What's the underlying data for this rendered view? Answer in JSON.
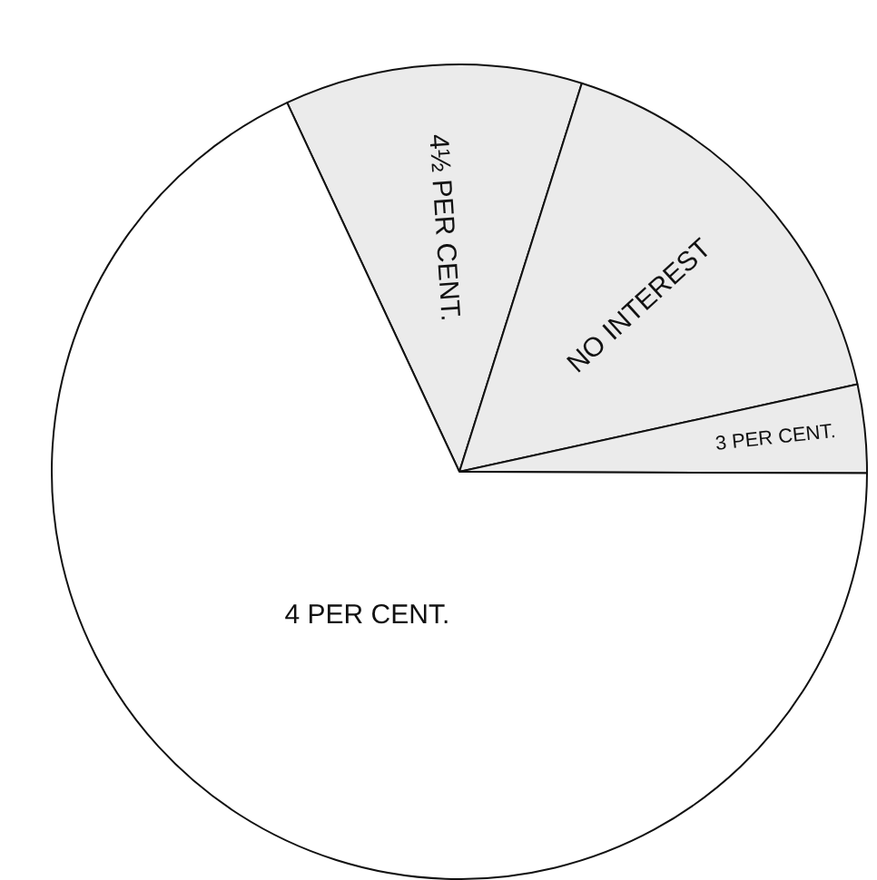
{
  "chart_data": {
    "type": "pie",
    "categories": [
      "4½ PER CENT.",
      "NO INTEREST",
      "3 PER CENT.",
      "4 PER CENT."
    ],
    "values": [
      11.8,
      16.7,
      3.5,
      68.0
    ],
    "colors": [
      "#ebebeb",
      "#ebebeb",
      "#ebebeb",
      "#ffffff"
    ]
  }
}
